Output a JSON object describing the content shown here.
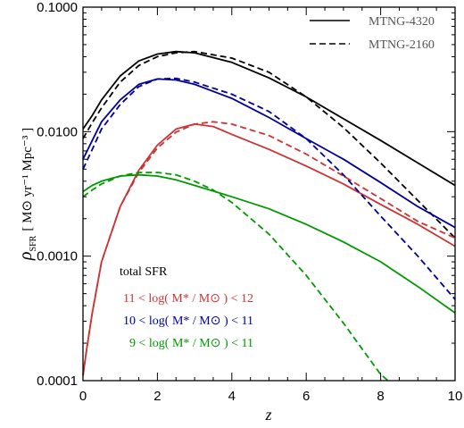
{
  "chart_data": {
    "type": "line",
    "title": "",
    "xlabel": "z",
    "ylabel": {
      "symbol": "ρ",
      "subscript": "SFR",
      "units": "[ M⊙ yr⁻¹ Mpc⁻³ ]"
    },
    "xlim": [
      0,
      10
    ],
    "ylim": [
      0.0001,
      0.1
    ],
    "yscale": "log",
    "x_ticks": [
      "0",
      "2",
      "4",
      "6",
      "8",
      "10"
    ],
    "y_ticks": [
      "0.0001",
      "0.0010",
      "0.0100",
      "0.1000"
    ],
    "grid": false,
    "legend": {
      "placement": "top-right",
      "entries": [
        {
          "label": "MTNG-4320",
          "linestyle": "solid"
        },
        {
          "label": "MTNG-2160",
          "linestyle": "dashed"
        }
      ]
    },
    "category_labels": [
      {
        "key": "total",
        "text": "total SFR",
        "color": "#000000"
      },
      {
        "key": "m11_12",
        "text": "11 < log( M* / M⊙ ) < 12",
        "color": "#cc3333"
      },
      {
        "key": "m10_11",
        "text": "10 < log( M* / M⊙ ) < 11",
        "color": "#000099"
      },
      {
        "key": "m9_11",
        "text": "9 < log( M* / M⊙ ) < 11",
        "color": "#009900"
      }
    ],
    "series": [
      {
        "category": "total",
        "run": "MTNG-4320",
        "color": "#000000",
        "linestyle": "solid",
        "x": [
          0,
          0.25,
          0.5,
          1,
          1.5,
          2,
          2.5,
          3,
          4,
          5,
          6,
          7,
          8,
          9,
          10
        ],
        "y": [
          0.0105,
          0.0135,
          0.018,
          0.028,
          0.037,
          0.042,
          0.044,
          0.043,
          0.036,
          0.027,
          0.019,
          0.0127,
          0.0085,
          0.0056,
          0.0037
        ]
      },
      {
        "category": "total",
        "run": "MTNG-2160",
        "color": "#000000",
        "linestyle": "dashed",
        "x": [
          0,
          0.25,
          0.5,
          1,
          1.5,
          2,
          2.5,
          3,
          4,
          5,
          6,
          7,
          8,
          9,
          10
        ],
        "y": [
          0.0088,
          0.0118,
          0.0155,
          0.025,
          0.034,
          0.04,
          0.043,
          0.044,
          0.039,
          0.03,
          0.019,
          0.0108,
          0.0056,
          0.0028,
          0.0014
        ]
      },
      {
        "category": "m11_12",
        "run": "MTNG-4320",
        "color": "#cc3333",
        "linestyle": "solid",
        "x": [
          0,
          0.1,
          0.25,
          0.5,
          1,
          1.5,
          2,
          2.5,
          3,
          3.5,
          4,
          5,
          6,
          7,
          8,
          9,
          10
        ],
        "y": [
          0.00011,
          0.00018,
          0.00035,
          0.0009,
          0.0025,
          0.0049,
          0.0078,
          0.0105,
          0.0115,
          0.011,
          0.0095,
          0.0072,
          0.0053,
          0.0038,
          0.0026,
          0.0018,
          0.0012
        ]
      },
      {
        "category": "m11_12",
        "run": "MTNG-2160",
        "color": "#cc3333",
        "linestyle": "dashed",
        "x": [
          0,
          0.1,
          0.25,
          0.5,
          1,
          1.5,
          2,
          2.5,
          3,
          3.5,
          4,
          5,
          6,
          7,
          8,
          9,
          10
        ],
        "y": [
          0.00011,
          0.00018,
          0.00035,
          0.0009,
          0.0025,
          0.0047,
          0.0074,
          0.0099,
          0.0115,
          0.012,
          0.0115,
          0.0093,
          0.0066,
          0.0044,
          0.0029,
          0.0019,
          0.0014
        ]
      },
      {
        "category": "m10_11",
        "run": "MTNG-4320",
        "color": "#000099",
        "linestyle": "solid",
        "x": [
          0,
          0.25,
          0.5,
          1,
          1.5,
          2,
          2.5,
          3,
          4,
          5,
          6,
          7,
          8,
          9,
          10
        ],
        "y": [
          0.006,
          0.0085,
          0.012,
          0.018,
          0.024,
          0.0265,
          0.026,
          0.024,
          0.0185,
          0.013,
          0.0088,
          0.006,
          0.0039,
          0.0025,
          0.0017
        ]
      },
      {
        "category": "m10_11",
        "run": "MTNG-2160",
        "color": "#000099",
        "linestyle": "dashed",
        "x": [
          0,
          0.25,
          0.5,
          1,
          1.5,
          2,
          2.5,
          3,
          4,
          5,
          6,
          7,
          8,
          9,
          10
        ],
        "y": [
          0.005,
          0.0072,
          0.0105,
          0.0165,
          0.023,
          0.0265,
          0.0268,
          0.025,
          0.02,
          0.0145,
          0.0088,
          0.0045,
          0.0021,
          0.001,
          0.00045
        ]
      },
      {
        "category": "m9_11",
        "run": "MTNG-4320",
        "color": "#009900",
        "linestyle": "solid",
        "x": [
          0,
          0.25,
          0.5,
          1,
          1.5,
          2,
          2.5,
          3,
          4,
          5,
          6,
          7,
          8,
          9,
          10
        ],
        "y": [
          0.0033,
          0.0037,
          0.004,
          0.0044,
          0.0045,
          0.0044,
          0.0041,
          0.0037,
          0.003,
          0.0024,
          0.0018,
          0.0013,
          0.0009,
          0.00057,
          0.00035
        ]
      },
      {
        "category": "m9_11",
        "run": "MTNG-2160",
        "color": "#009900",
        "linestyle": "dashed",
        "x": [
          0,
          0.25,
          0.5,
          1,
          1.5,
          2,
          2.5,
          3,
          3.5,
          4,
          5,
          6,
          7,
          7.5,
          8,
          8.2
        ],
        "y": [
          0.003,
          0.0034,
          0.0038,
          0.0044,
          0.0047,
          0.0047,
          0.0045,
          0.004,
          0.0034,
          0.0027,
          0.0015,
          0.0007,
          0.00029,
          0.00018,
          0.000112,
          0.0001
        ]
      }
    ]
  }
}
